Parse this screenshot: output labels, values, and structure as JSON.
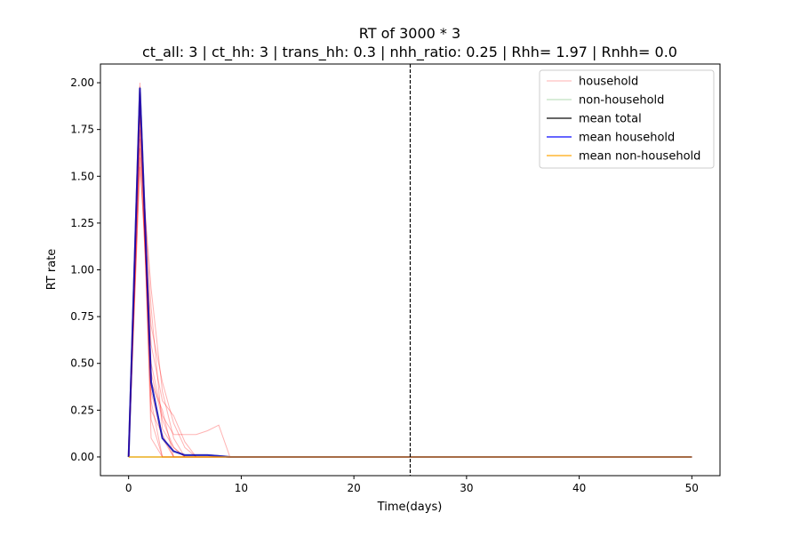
{
  "chart_data": {
    "type": "line",
    "title": "RT of 3000 * 3",
    "subtitle": "ct_all: 3 | ct_hh: 3 | trans_hh: 0.3 | nhh_ratio: 0.25 | Rhh= 1.97 | Rnhh= 0.0",
    "xlabel": "Time(days)",
    "ylabel": "RT rate",
    "xlim": [
      -2.5,
      52.5
    ],
    "ylim": [
      -0.1,
      2.1
    ],
    "xticks": [
      0,
      10,
      20,
      30,
      40,
      50
    ],
    "yticks": [
      0.0,
      0.25,
      0.5,
      0.75,
      1.0,
      1.25,
      1.5,
      1.75,
      2.0
    ],
    "ytick_labels": [
      "0.00",
      "0.25",
      "0.50",
      "0.75",
      "1.00",
      "1.25",
      "1.50",
      "1.75",
      "2.00"
    ],
    "grid": false,
    "legend_position": "top-right",
    "vline": {
      "x": 25,
      "style": "dashed",
      "color": "#000000"
    },
    "household_runs": [
      {
        "x": [
          0,
          1,
          2,
          3,
          50
        ],
        "y": [
          0,
          2.0,
          0.1,
          0,
          0
        ]
      },
      {
        "x": [
          0,
          1,
          2,
          3,
          4,
          5,
          50
        ],
        "y": [
          0,
          1.95,
          0.45,
          0.2,
          0.05,
          0,
          0
        ]
      },
      {
        "x": [
          0,
          1,
          2,
          3,
          4,
          5,
          6,
          7,
          8,
          9,
          50
        ],
        "y": [
          0,
          1.6,
          0.5,
          0.22,
          0.12,
          0.12,
          0.12,
          0.14,
          0.17,
          0,
          0
        ]
      },
      {
        "x": [
          0,
          1,
          2,
          3,
          4,
          5,
          6,
          50
        ],
        "y": [
          0,
          1.85,
          0.6,
          0.3,
          0.22,
          0.08,
          0,
          0
        ]
      },
      {
        "x": [
          0,
          1,
          2,
          3,
          4,
          50
        ],
        "y": [
          0,
          1.7,
          0.35,
          0.1,
          0,
          0
        ]
      },
      {
        "x": [
          0,
          1,
          2,
          3,
          50
        ],
        "y": [
          0,
          1.9,
          0.2,
          0,
          0
        ]
      },
      {
        "x": [
          0,
          1,
          2,
          3,
          4,
          5,
          50
        ],
        "y": [
          0,
          1.75,
          0.8,
          0.15,
          0.05,
          0,
          0
        ]
      },
      {
        "x": [
          0,
          1,
          2,
          3,
          4,
          50
        ],
        "y": [
          0,
          1.8,
          0.4,
          0.25,
          0,
          0
        ]
      },
      {
        "x": [
          0,
          1,
          2,
          3,
          4,
          5,
          50
        ],
        "y": [
          0,
          1.65,
          0.9,
          0.35,
          0.1,
          0,
          0
        ]
      },
      {
        "x": [
          0,
          1,
          2,
          3,
          50
        ],
        "y": [
          0,
          1.98,
          0.3,
          0,
          0
        ]
      },
      {
        "x": [
          0,
          1,
          2,
          3,
          4,
          5,
          6,
          50
        ],
        "y": [
          0,
          1.55,
          0.7,
          0.4,
          0.18,
          0.05,
          0,
          0
        ]
      },
      {
        "x": [
          0,
          1,
          2,
          3,
          4,
          50
        ],
        "y": [
          0,
          1.88,
          0.25,
          0.12,
          0,
          0
        ]
      }
    ],
    "non_household_runs": [
      {
        "x": [
          0,
          50
        ],
        "y": [
          0,
          0
        ]
      }
    ],
    "series": [
      {
        "name": "household",
        "color": "#ff0000",
        "opacity": 0.3,
        "width": 1
      },
      {
        "name": "non-household",
        "color": "#008000",
        "opacity": 0.3,
        "width": 1
      },
      {
        "name": "mean total",
        "color": "#000000",
        "opacity": 0.6,
        "width": 2,
        "x": [
          0,
          1,
          2,
          3,
          4,
          5,
          6,
          7,
          8,
          9,
          10,
          50
        ],
        "y": [
          0,
          1.97,
          0.4,
          0.1,
          0.03,
          0.01,
          0.01,
          0.01,
          0.005,
          0,
          0,
          0
        ]
      },
      {
        "name": "mean household",
        "color": "#0000ff",
        "opacity": 0.6,
        "width": 2,
        "x": [
          0,
          1,
          2,
          3,
          4,
          5,
          6,
          7,
          8,
          9,
          10,
          50
        ],
        "y": [
          0,
          1.97,
          0.4,
          0.1,
          0.03,
          0.01,
          0.01,
          0.01,
          0.005,
          0,
          0,
          0
        ]
      },
      {
        "name": "mean non-household",
        "color": "#ffa500",
        "opacity": 0.6,
        "width": 2,
        "x": [
          0,
          50
        ],
        "y": [
          0,
          0
        ]
      }
    ]
  }
}
